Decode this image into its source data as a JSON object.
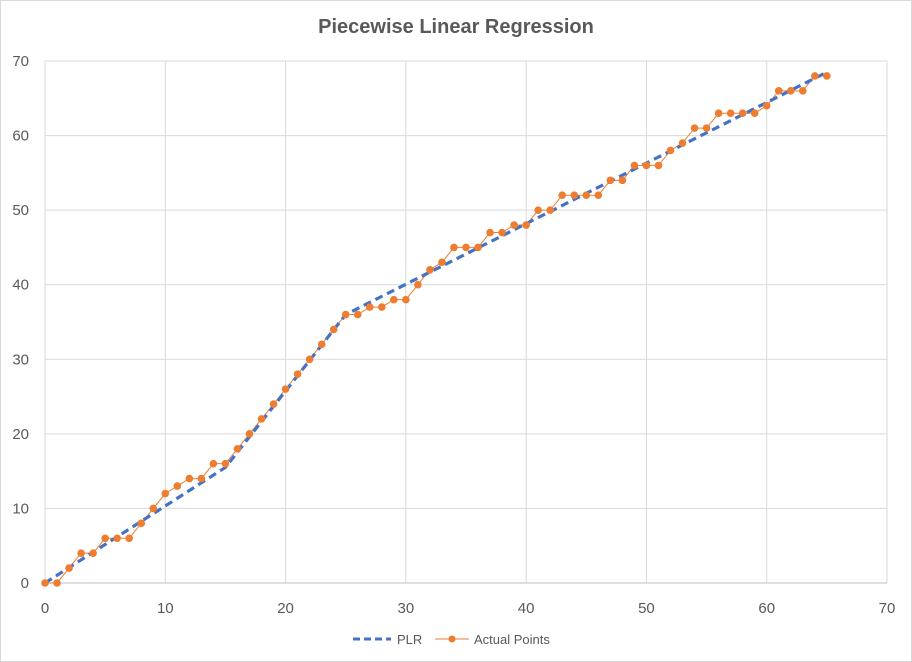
{
  "chart_data": {
    "type": "line",
    "title": "Piecewise Linear Regression",
    "xlabel": "",
    "ylabel": "",
    "xlim": [
      0,
      70
    ],
    "ylim": [
      0,
      70
    ],
    "x_ticks": [
      0,
      10,
      20,
      30,
      40,
      50,
      60,
      70
    ],
    "y_ticks": [
      0,
      10,
      20,
      30,
      40,
      50,
      60,
      70
    ],
    "grid": true,
    "legend_position": "bottom",
    "series": [
      {
        "name": "PLR",
        "style": "dashed",
        "color": "#4472c4",
        "x": [
          0,
          15,
          25,
          65
        ],
        "y": [
          0,
          15.5,
          36,
          68.5
        ]
      },
      {
        "name": "Actual Points",
        "style": "line-markers",
        "color": "#ed7d31",
        "x": [
          0,
          1,
          2,
          3,
          4,
          5,
          6,
          7,
          8,
          9,
          10,
          11,
          12,
          13,
          14,
          15,
          16,
          17,
          18,
          19,
          20,
          21,
          22,
          23,
          24,
          25,
          26,
          27,
          28,
          29,
          30,
          31,
          32,
          33,
          34,
          35,
          36,
          37,
          38,
          39,
          40,
          41,
          42,
          43,
          44,
          45,
          46,
          47,
          48,
          49,
          50,
          51,
          52,
          53,
          54,
          55,
          56,
          57,
          58,
          59,
          60,
          61,
          62,
          63,
          64,
          65
        ],
        "y": [
          0,
          0,
          2,
          4,
          4,
          6,
          6,
          6,
          8,
          10,
          12,
          13,
          14,
          14,
          16,
          16,
          18,
          20,
          22,
          24,
          26,
          28,
          30,
          32,
          34,
          36,
          36,
          37,
          37,
          38,
          38,
          40,
          42,
          43,
          45,
          45,
          45,
          47,
          47,
          48,
          48,
          50,
          50,
          52,
          52,
          52,
          52,
          54,
          54,
          56,
          56,
          56,
          58,
          59,
          61,
          61,
          63,
          63,
          63,
          63,
          64,
          66,
          66,
          66,
          68,
          68
        ]
      }
    ]
  }
}
